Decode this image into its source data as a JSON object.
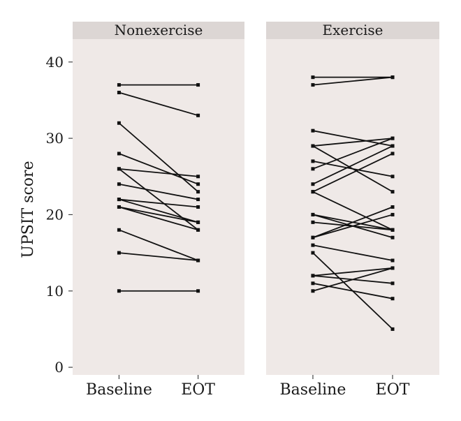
{
  "chart_data": {
    "type": "line",
    "ylabel": "UPSIT score",
    "ylim": [
      -1,
      43
    ],
    "yticks": [
      0,
      10,
      20,
      30,
      40
    ],
    "grid": false,
    "panel_background": "#efe9e7",
    "strip_background": "#dcd6d4",
    "line_color": "#111111",
    "panels": [
      {
        "title": "Nonexercise",
        "categories": [
          "Baseline",
          "EOT"
        ],
        "pairs": [
          [
            37,
            37
          ],
          [
            36,
            33
          ],
          [
            32,
            23
          ],
          [
            28,
            24
          ],
          [
            26,
            25
          ],
          [
            26,
            18
          ],
          [
            24,
            22
          ],
          [
            22,
            21
          ],
          [
            22,
            19
          ],
          [
            21,
            19
          ],
          [
            21,
            18
          ],
          [
            18,
            14
          ],
          [
            15,
            14
          ],
          [
            10,
            10
          ]
        ]
      },
      {
        "title": "Exercise",
        "categories": [
          "Baseline",
          "EOT"
        ],
        "pairs": [
          [
            38,
            38
          ],
          [
            37,
            38
          ],
          [
            31,
            29
          ],
          [
            29,
            30
          ],
          [
            29,
            23
          ],
          [
            27,
            25
          ],
          [
            26,
            30
          ],
          [
            24,
            29
          ],
          [
            23,
            28
          ],
          [
            23,
            18
          ],
          [
            20,
            18
          ],
          [
            20,
            17
          ],
          [
            19,
            18
          ],
          [
            17,
            21
          ],
          [
            17,
            20
          ],
          [
            16,
            14
          ],
          [
            15,
            5
          ],
          [
            12,
            13
          ],
          [
            12,
            11
          ],
          [
            11,
            9
          ],
          [
            10,
            13
          ]
        ]
      }
    ]
  }
}
